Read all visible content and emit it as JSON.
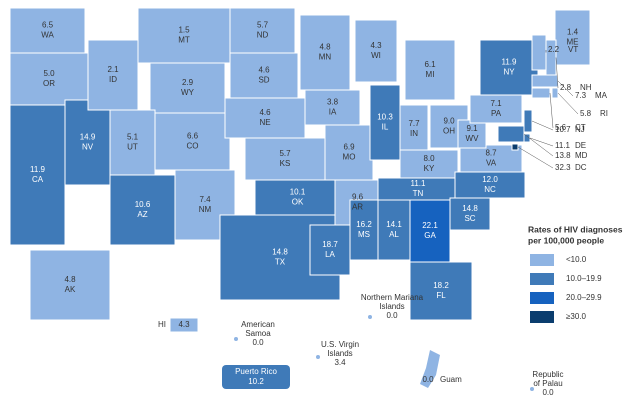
{
  "map": {
    "states": [
      {
        "abbr": "WA",
        "rate": 6.5
      },
      {
        "abbr": "OR",
        "rate": 5,
        "rate_label": "5.0"
      },
      {
        "abbr": "CA",
        "rate": 11.9
      },
      {
        "abbr": "NV",
        "rate": 14.9
      },
      {
        "abbr": "ID",
        "rate": 2.1
      },
      {
        "abbr": "MT",
        "rate": 1.5
      },
      {
        "abbr": "WY",
        "rate": 2.9
      },
      {
        "abbr": "UT",
        "rate": 5.1
      },
      {
        "abbr": "AZ",
        "rate": 10.6
      },
      {
        "abbr": "CO",
        "rate": 6.6
      },
      {
        "abbr": "NM",
        "rate": 7.4
      },
      {
        "abbr": "ND",
        "rate": 5.7
      },
      {
        "abbr": "SD",
        "rate": 4.6
      },
      {
        "abbr": "NE",
        "rate": 4.6
      },
      {
        "abbr": "KS",
        "rate": 5.7
      },
      {
        "abbr": "OK",
        "rate": 10.1
      },
      {
        "abbr": "TX",
        "rate": 14.8
      },
      {
        "abbr": "MN",
        "rate": 4.8
      },
      {
        "abbr": "IA",
        "rate": 3.8
      },
      {
        "abbr": "MO",
        "rate": 6.9
      },
      {
        "abbr": "AR",
        "rate": 9.6
      },
      {
        "abbr": "LA",
        "rate": 18.7
      },
      {
        "abbr": "WI",
        "rate": 4.3
      },
      {
        "abbr": "IL",
        "rate": 10.3
      },
      {
        "abbr": "MI",
        "rate": 6.1
      },
      {
        "abbr": "IN",
        "rate": 7.7
      },
      {
        "abbr": "OH",
        "rate": 9.0,
        "rate_label": "9.0"
      },
      {
        "abbr": "KY",
        "rate": 8.0,
        "rate_label": "8.0"
      },
      {
        "abbr": "TN",
        "rate": 11.1
      },
      {
        "abbr": "MS",
        "rate": 16.2
      },
      {
        "abbr": "AL",
        "rate": 14.1
      },
      {
        "abbr": "GA",
        "rate": 22.1
      },
      {
        "abbr": "FL",
        "rate": 18.2
      },
      {
        "abbr": "SC",
        "rate": 14.8
      },
      {
        "abbr": "NC",
        "rate": 12,
        "rate_label": "12.0"
      },
      {
        "abbr": "VA",
        "rate": 8.7
      },
      {
        "abbr": "WV",
        "rate": 9.1
      },
      {
        "abbr": "PA",
        "rate": 7.1
      },
      {
        "abbr": "NY",
        "rate": 11.9
      },
      {
        "abbr": "VT",
        "rate": 2.2
      },
      {
        "abbr": "ME",
        "rate": 1.4
      },
      {
        "abbr": "NH",
        "rate": 2.8
      },
      {
        "abbr": "MA",
        "rate": 7.3
      },
      {
        "abbr": "RI",
        "rate": 5.8
      },
      {
        "abbr": "CT",
        "rate": 5.6
      },
      {
        "abbr": "NJ",
        "rate": 10.7
      },
      {
        "abbr": "DE",
        "rate": 11.1
      },
      {
        "abbr": "MD",
        "rate": 13.8
      },
      {
        "abbr": "DC",
        "rate": 32.3
      },
      {
        "abbr": "AK",
        "rate": 4.8
      },
      {
        "abbr": "HI",
        "rate": 4.3
      }
    ],
    "territories": [
      {
        "name": [
          "American",
          "Samoa"
        ],
        "rate": 0,
        "rate_label": "0.0"
      },
      {
        "name": [
          "Northern Mariana",
          "Islands"
        ],
        "rate": 0,
        "rate_label": "0.0"
      },
      {
        "name": [
          "U.S. Virgin",
          "Islands"
        ],
        "rate": 3.4
      },
      {
        "name": [
          "Puerto Rico"
        ],
        "rate": 10.2
      },
      {
        "name": [
          "Guam"
        ],
        "rate": 0,
        "rate_label": "0.0"
      },
      {
        "name": [
          "Republic",
          "of Palau"
        ],
        "rate": 0,
        "rate_label": "0.0"
      }
    ],
    "legend": {
      "title": [
        "Rates of HIV diagnoses",
        "per 100,000 people"
      ],
      "items": [
        {
          "label": "<10.0",
          "color": "#8fb4e3"
        },
        {
          "label": "10.0–19.9",
          "color": "#3f7ab8",
          "from": 10
        },
        {
          "label": "20.0–29.9",
          "color": "#1662bf",
          "from": 20
        },
        {
          "label": "≥30.0",
          "color": "#0b3d6e",
          "from": 30
        }
      ]
    }
  }
}
